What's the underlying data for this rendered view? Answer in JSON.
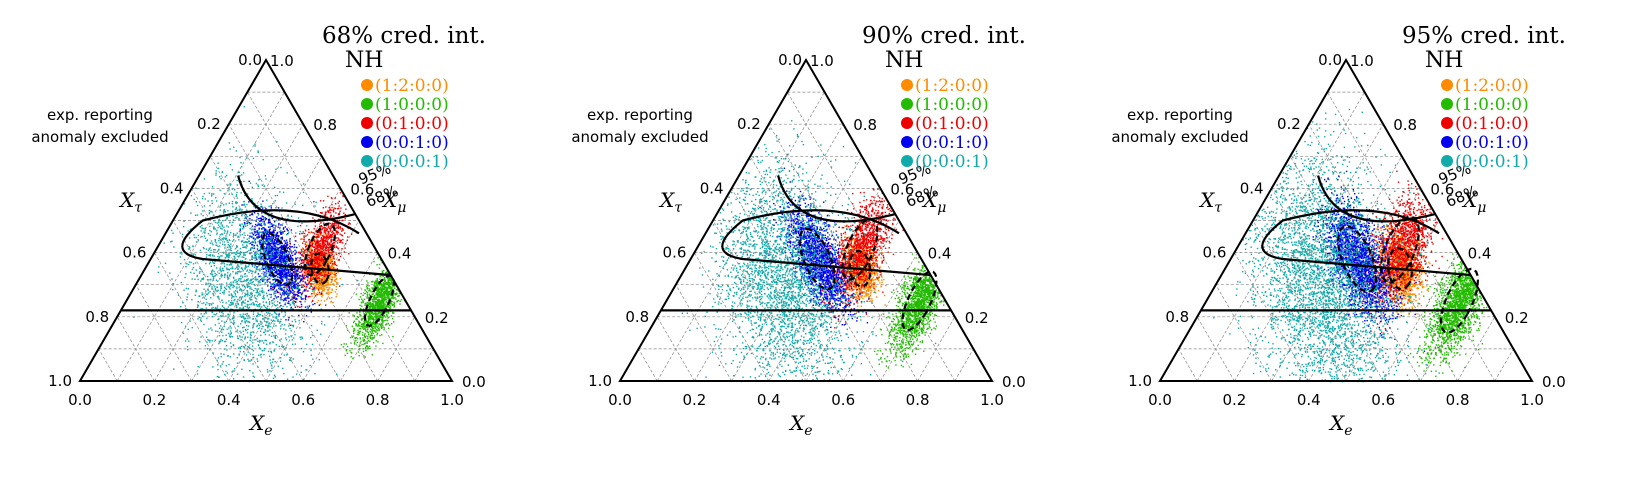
{
  "chart_data": [
    {
      "type": "ternary-scatter",
      "title": "68% cred. int.",
      "legend_title": "NH",
      "annotation": [
        "exp. reporting",
        "anomaly excluded"
      ],
      "axes": {
        "bottom": {
          "label": "X",
          "sub": "e",
          "ticks": [
            "0.0",
            "0.2",
            "0.4",
            "0.6",
            "0.8",
            "1.0"
          ],
          "range": [
            0,
            1
          ]
        },
        "left": {
          "label": "X",
          "sub": "τ",
          "ticks": [
            "0.0",
            "0.2",
            "0.4",
            "0.6",
            "0.8",
            "1.0"
          ],
          "range": [
            0,
            1
          ]
        },
        "right": {
          "label": "X",
          "sub": "μ",
          "ticks": [
            "0.0",
            "0.2",
            "0.4",
            "0.6",
            "0.8",
            "1.0"
          ],
          "range": [
            0,
            1
          ]
        }
      },
      "contour_labels": [
        "95%",
        "68%"
      ],
      "legend": [
        {
          "label": "(1:2:0:0)",
          "color": "#ff8c00"
        },
        {
          "label": "(1:0:0:0)",
          "color": "#22bb00"
        },
        {
          "label": "(0:1:0:0)",
          "color": "#ee0000"
        },
        {
          "label": "(0:0:1:0)",
          "color": "#0000ee"
        },
        {
          "label": "(0:0:0:1)",
          "color": "#11aaaa"
        }
      ],
      "regions": [
        {
          "name": "(1:2:0:0)",
          "center": {
            "e": 0.47,
            "tau": 0.18
          },
          "spread": [
            0.03,
            0.025
          ],
          "count": 900
        },
        {
          "name": "(1:0:0:0)",
          "center": {
            "e": 0.68,
            "tau": 0.07
          },
          "spread": [
            0.025,
            0.06
          ],
          "count": 1400
        },
        {
          "name": "(0:1:0:0)",
          "center": {
            "e": 0.44,
            "tau": 0.15
          },
          "spread": [
            0.03,
            0.06
          ],
          "count": 1000
        },
        {
          "name": "(0:0:1:0)",
          "center": {
            "e": 0.34,
            "tau": 0.28
          },
          "spread": [
            0.06,
            0.03
          ],
          "count": 1400
        },
        {
          "name": "(0:0:0:1)",
          "center": {
            "e": 0.28,
            "tau": 0.4
          },
          "spread": [
            0.12,
            0.1
          ],
          "count": 2000
        }
      ]
    },
    {
      "type": "ternary-scatter",
      "title": "90% cred. int.",
      "legend_title": "NH",
      "annotation": [
        "exp. reporting",
        "anomaly excluded"
      ],
      "axes": {
        "bottom": {
          "label": "X",
          "sub": "e",
          "ticks": [
            "0.0",
            "0.2",
            "0.4",
            "0.6",
            "0.8",
            "1.0"
          ],
          "range": [
            0,
            1
          ]
        },
        "left": {
          "label": "X",
          "sub": "τ",
          "ticks": [
            "0.0",
            "0.2",
            "0.4",
            "0.6",
            "0.8",
            "1.0"
          ],
          "range": [
            0,
            1
          ]
        },
        "right": {
          "label": "X",
          "sub": "μ",
          "ticks": [
            "0.0",
            "0.2",
            "0.4",
            "0.6",
            "0.8",
            "1.0"
          ],
          "range": [
            0,
            1
          ]
        }
      },
      "contour_labels": [
        "95%",
        "68%"
      ],
      "legend": [
        {
          "label": "(1:2:0:0)",
          "color": "#ff8c00"
        },
        {
          "label": "(1:0:0:0)",
          "color": "#22bb00"
        },
        {
          "label": "(0:1:0:0)",
          "color": "#ee0000"
        },
        {
          "label": "(0:0:1:0)",
          "color": "#0000ee"
        },
        {
          "label": "(0:0:0:1)",
          "color": "#11aaaa"
        }
      ],
      "regions": [
        {
          "name": "(1:2:0:0)",
          "center": {
            "e": 0.47,
            "tau": 0.18
          },
          "spread": [
            0.035,
            0.03
          ],
          "count": 1100
        },
        {
          "name": "(1:0:0:0)",
          "center": {
            "e": 0.68,
            "tau": 0.07
          },
          "spread": [
            0.03,
            0.07
          ],
          "count": 1700
        },
        {
          "name": "(0:1:0:0)",
          "center": {
            "e": 0.44,
            "tau": 0.15
          },
          "spread": [
            0.035,
            0.07
          ],
          "count": 1300
        },
        {
          "name": "(0:0:1:0)",
          "center": {
            "e": 0.34,
            "tau": 0.28
          },
          "spread": [
            0.07,
            0.035
          ],
          "count": 1700
        },
        {
          "name": "(0:0:0:1)",
          "center": {
            "e": 0.28,
            "tau": 0.4
          },
          "spread": [
            0.14,
            0.11
          ],
          "count": 3000
        }
      ]
    },
    {
      "type": "ternary-scatter",
      "title": "95% cred. int.",
      "legend_title": "NH",
      "annotation": [
        "exp. reporting",
        "anomaly excluded"
      ],
      "axes": {
        "bottom": {
          "label": "X",
          "sub": "e",
          "ticks": [
            "0.0",
            "0.2",
            "0.4",
            "0.6",
            "0.8",
            "1.0"
          ],
          "range": [
            0,
            1
          ]
        },
        "left": {
          "label": "X",
          "sub": "τ",
          "ticks": [
            "0.0",
            "0.2",
            "0.4",
            "0.6",
            "0.8",
            "1.0"
          ],
          "range": [
            0,
            1
          ]
        },
        "right": {
          "label": "X",
          "sub": "μ",
          "ticks": [
            "0.0",
            "0.2",
            "0.4",
            "0.6",
            "0.8",
            "1.0"
          ],
          "range": [
            0,
            1
          ]
        }
      },
      "contour_labels": [
        "95%",
        "68%"
      ],
      "legend": [
        {
          "label": "(1:2:0:0)",
          "color": "#ff8c00"
        },
        {
          "label": "(1:0:0:0)",
          "color": "#22bb00"
        },
        {
          "label": "(0:1:0:0)",
          "color": "#ee0000"
        },
        {
          "label": "(0:0:1:0)",
          "color": "#0000ee"
        },
        {
          "label": "(0:0:0:1)",
          "color": "#11aaaa"
        }
      ],
      "regions": [
        {
          "name": "(1:2:0:0)",
          "center": {
            "e": 0.47,
            "tau": 0.18
          },
          "spread": [
            0.04,
            0.035
          ],
          "count": 1300
        },
        {
          "name": "(1:0:0:0)",
          "center": {
            "e": 0.68,
            "tau": 0.07
          },
          "spread": [
            0.035,
            0.075
          ],
          "count": 2000
        },
        {
          "name": "(0:1:0:0)",
          "center": {
            "e": 0.44,
            "tau": 0.15
          },
          "spread": [
            0.04,
            0.075
          ],
          "count": 1500
        },
        {
          "name": "(0:0:1:0)",
          "center": {
            "e": 0.34,
            "tau": 0.28
          },
          "spread": [
            0.075,
            0.04
          ],
          "count": 2000
        },
        {
          "name": "(0:0:0:1)",
          "center": {
            "e": 0.28,
            "tau": 0.4
          },
          "spread": [
            0.15,
            0.12
          ],
          "count": 3800
        }
      ]
    }
  ]
}
